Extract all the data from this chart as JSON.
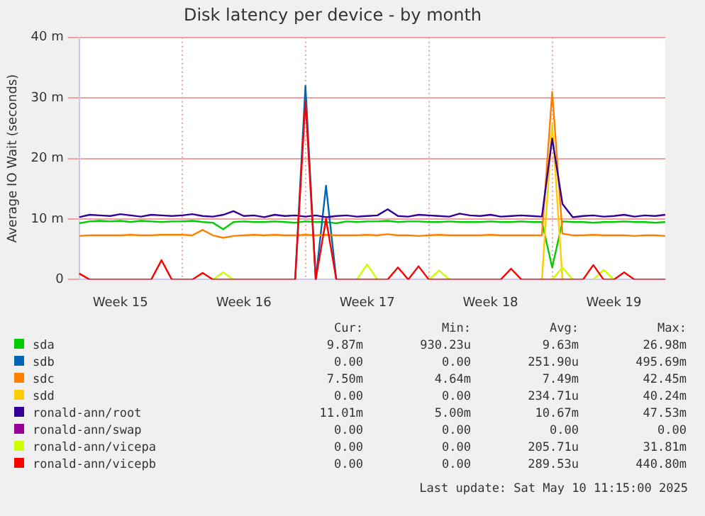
{
  "chart_data": {
    "type": "line",
    "title": "Disk latency per device - by month",
    "ylabel": "Average IO Wait (seconds)",
    "categories": [
      null,
      null,
      null,
      null,
      "Week 15",
      null,
      null,
      null,
      null,
      null,
      null,
      null,
      null,
      null,
      null,
      null,
      "Week 16",
      null,
      null,
      null,
      null,
      null,
      null,
      null,
      null,
      null,
      null,
      null,
      "Week 17",
      null,
      null,
      null,
      null,
      null,
      null,
      null,
      null,
      null,
      null,
      null,
      "Week 18",
      null,
      null,
      null,
      null,
      null,
      null,
      null,
      null,
      null,
      null,
      null,
      "Week 19",
      null,
      null,
      null,
      null,
      null
    ],
    "ylim": [
      0,
      40
    ],
    "yticks": [
      {
        "value": 0,
        "label": "0"
      },
      {
        "value": 10,
        "label": "10 m"
      },
      {
        "value": 20,
        "label": "20 m"
      },
      {
        "value": 30,
        "label": "30 m"
      },
      {
        "value": 40,
        "label": "40 m"
      }
    ],
    "grid": true,
    "legend": "bottom",
    "marker": "none",
    "line_style": "solid",
    "series": [
      {
        "name": "sda",
        "color": "#00cc00",
        "values": [
          9.3,
          9.6,
          9.7,
          9.6,
          9.7,
          9.5,
          9.7,
          9.6,
          9.5,
          9.6,
          9.6,
          9.7,
          9.5,
          9.4,
          8.3,
          9.5,
          9.6,
          9.5,
          9.5,
          9.6,
          9.5,
          9.4,
          9.6,
          9.5,
          9.5,
          9.3,
          9.6,
          9.5,
          9.6,
          9.6,
          9.7,
          9.5,
          9.6,
          9.6,
          9.5,
          9.5,
          9.6,
          9.5,
          9.5,
          9.5,
          9.6,
          9.5,
          9.5,
          9.6,
          9.5,
          9.5,
          2.0,
          9.6,
          9.5,
          9.5,
          9.4,
          9.5,
          9.5,
          9.6,
          9.5,
          9.5,
          9.4,
          9.5
        ]
      },
      {
        "name": "sdb",
        "color": "#0066b3",
        "values": [
          null,
          null,
          null,
          null,
          null,
          null,
          null,
          null,
          null,
          null,
          null,
          null,
          null,
          null,
          null,
          null,
          null,
          null,
          null,
          null,
          null,
          0,
          32,
          0,
          15.5,
          0,
          null,
          null,
          null,
          null,
          null,
          null,
          null,
          null,
          null,
          null,
          null,
          null,
          null,
          null,
          null,
          null,
          null,
          null,
          null,
          null,
          null,
          null,
          null,
          null,
          null,
          null,
          null,
          null,
          null,
          null,
          null,
          null
        ]
      },
      {
        "name": "sdc",
        "color": "#ff8000",
        "values": [
          7.2,
          7.3,
          7.3,
          7.3,
          7.3,
          7.4,
          7.3,
          7.3,
          7.4,
          7.4,
          7.4,
          7.3,
          8.2,
          7.3,
          6.9,
          7.2,
          7.3,
          7.4,
          7.3,
          7.4,
          7.3,
          7.3,
          7.4,
          7.3,
          7.4,
          7.3,
          7.3,
          7.3,
          7.4,
          7.3,
          7.5,
          7.3,
          7.3,
          7.2,
          7.3,
          7.4,
          7.3,
          7.3,
          7.3,
          7.3,
          7.4,
          7.3,
          7.3,
          7.3,
          7.3,
          7.3,
          31.0,
          7.6,
          7.3,
          7.3,
          7.4,
          7.3,
          7.3,
          7.3,
          7.2,
          7.3,
          7.3,
          7.2
        ]
      },
      {
        "name": "sdd",
        "color": "#ffcc00",
        "values": [
          null,
          null,
          null,
          null,
          null,
          null,
          null,
          null,
          null,
          null,
          null,
          null,
          null,
          null,
          null,
          null,
          null,
          null,
          null,
          null,
          null,
          null,
          null,
          null,
          null,
          null,
          null,
          null,
          null,
          null,
          null,
          null,
          null,
          null,
          null,
          null,
          null,
          null,
          null,
          null,
          null,
          null,
          null,
          null,
          null,
          0,
          25.7,
          0,
          null,
          null,
          null,
          null,
          null,
          null,
          null,
          null,
          null,
          null
        ]
      },
      {
        "name": "ronald-ann/root",
        "color": "#330099",
        "values": [
          10.3,
          10.7,
          10.6,
          10.5,
          10.8,
          10.6,
          10.4,
          10.7,
          10.6,
          10.5,
          10.6,
          10.8,
          10.5,
          10.4,
          10.7,
          11.3,
          10.5,
          10.6,
          10.3,
          10.7,
          10.5,
          10.6,
          10.4,
          10.6,
          10.3,
          10.5,
          10.6,
          10.4,
          10.5,
          10.6,
          11.6,
          10.5,
          10.4,
          10.7,
          10.6,
          10.5,
          10.4,
          10.9,
          10.6,
          10.5,
          10.7,
          10.4,
          10.5,
          10.6,
          10.5,
          10.4,
          23.3,
          12.5,
          10.3,
          10.5,
          10.6,
          10.4,
          10.5,
          10.7,
          10.4,
          10.6,
          10.5,
          10.7
        ]
      },
      {
        "name": "ronald-ann/swap",
        "color": "#990099",
        "values": [
          null,
          null,
          null,
          null,
          null,
          null,
          null,
          null,
          null,
          null,
          null,
          null,
          null,
          null,
          null,
          null,
          null,
          null,
          null,
          null,
          null,
          null,
          null,
          null,
          null,
          null,
          null,
          null,
          null,
          null,
          null,
          null,
          null,
          null,
          null,
          null,
          null,
          null,
          null,
          null,
          null,
          null,
          null,
          null,
          null,
          null,
          null,
          null,
          null,
          null,
          null,
          null,
          null,
          null,
          null,
          null,
          null,
          null
        ]
      },
      {
        "name": "ronald-ann/vicepa",
        "color": "#ccff00",
        "values": [
          null,
          null,
          null,
          null,
          null,
          null,
          null,
          null,
          null,
          null,
          null,
          null,
          null,
          0,
          1.2,
          0,
          null,
          null,
          null,
          null,
          null,
          null,
          null,
          null,
          null,
          null,
          null,
          0,
          2.5,
          0,
          null,
          null,
          null,
          null,
          0,
          1.5,
          0,
          null,
          null,
          null,
          null,
          null,
          null,
          null,
          null,
          null,
          0,
          2.0,
          0,
          null,
          0,
          1.6,
          0,
          null,
          null,
          null,
          null,
          null
        ]
      },
      {
        "name": "ronald-ann/vicepb",
        "color": "#ff0000",
        "values": [
          1.0,
          0,
          0,
          0,
          0,
          0,
          0,
          0,
          3.2,
          0,
          0,
          0,
          1.1,
          0,
          0,
          0,
          0,
          0,
          0,
          0,
          0,
          0,
          29.5,
          0,
          10.0,
          0,
          0,
          0,
          0,
          0,
          0,
          2.0,
          0,
          2.2,
          0,
          0,
          0,
          0,
          0,
          0,
          0,
          0,
          1.8,
          0,
          0,
          0,
          0,
          0,
          0,
          0,
          2.4,
          0,
          0,
          1.2,
          0,
          0,
          0,
          0
        ]
      }
    ],
    "annotations": [
      "Cur:",
      "Min:",
      "Avg:",
      "Max:",
      "9.87m",
      "930.23u",
      "9.63m",
      "26.98m",
      "0.00",
      "0.00",
      "251.90u",
      "495.69m",
      "7.50m",
      "4.64m",
      "7.49m",
      "42.45m",
      "0.00",
      "0.00",
      "234.71u",
      "40.24m",
      "11.01m",
      "5.00m",
      "10.67m",
      "47.53m",
      "0.00",
      "0.00",
      "0.00",
      "0.00",
      "0.00",
      "0.00",
      "205.71u",
      "31.81m",
      "0.00",
      "0.00",
      "289.53u",
      "440.80m",
      "Last update: Sat May 10 11:15:00 2025"
    ]
  }
}
